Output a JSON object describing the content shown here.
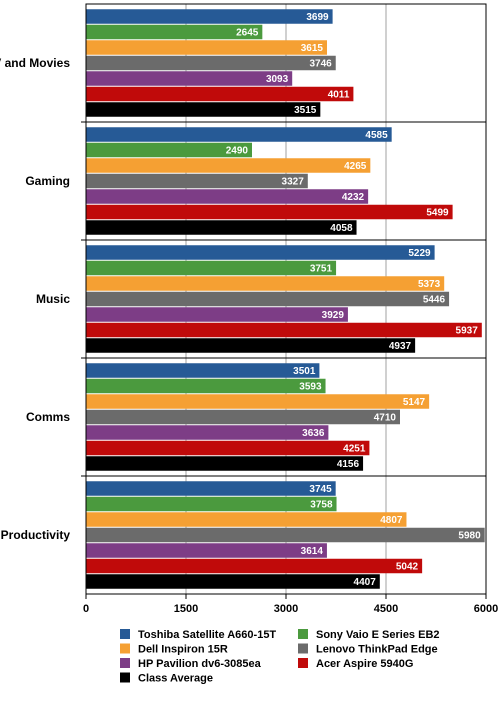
{
  "chart_data": {
    "type": "bar",
    "orientation": "horizontal",
    "categories": [
      "TV and Movies",
      "Gaming",
      "Music",
      "Comms",
      "Productivity"
    ],
    "series": [
      {
        "name": "Toshiba Satellite A660-15T",
        "color": "#265A96",
        "values": [
          3699,
          4585,
          5229,
          3501,
          3745
        ]
      },
      {
        "name": "Sony Vaio E Series EB2",
        "color": "#4B9A3E",
        "values": [
          2645,
          2490,
          3751,
          3593,
          3758
        ]
      },
      {
        "name": "Dell Inspiron 15R",
        "color": "#F5A033",
        "values": [
          3615,
          4265,
          5373,
          5147,
          4807
        ]
      },
      {
        "name": "Lenovo ThinkPad Edge",
        "color": "#6B6B6B",
        "values": [
          3746,
          3327,
          5446,
          4710,
          5980
        ]
      },
      {
        "name": "HP Pavilion dv6-3085ea",
        "color": "#7D3D86",
        "values": [
          3093,
          4232,
          3929,
          3636,
          3614
        ]
      },
      {
        "name": "Acer Aspire 5940G",
        "color": "#C00A0A",
        "values": [
          4011,
          5499,
          5937,
          4251,
          5042
        ]
      },
      {
        "name": "Class Average",
        "color": "#000000",
        "values": [
          3515,
          4058,
          4937,
          4156,
          4407
        ]
      }
    ],
    "xlim": [
      0,
      6000
    ],
    "ticks": [
      0,
      1500,
      3000,
      4500,
      6000
    ],
    "grid": true,
    "legend": "bottom",
    "title": "",
    "xlabel": "",
    "ylabel": ""
  }
}
